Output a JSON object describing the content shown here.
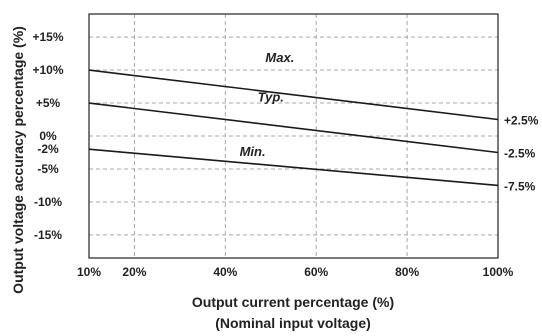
{
  "chart_data": {
    "type": "line",
    "xlabel": "Output current percentage (%)",
    "xlabel_sub": "(Nominal input voltage)",
    "ylabel": "Output voltage accuracy percentage (%)",
    "xlim": [
      10,
      100
    ],
    "ylim": [
      -18.5,
      18.5
    ],
    "x_ticks": [
      {
        "value": 10,
        "label": "10%"
      },
      {
        "value": 20,
        "label": "20%"
      },
      {
        "value": 40,
        "label": "40%"
      },
      {
        "value": 60,
        "label": "60%"
      },
      {
        "value": 80,
        "label": "80%"
      },
      {
        "value": 100,
        "label": "100%"
      }
    ],
    "x_grid": [
      20,
      40,
      60,
      80
    ],
    "y_ticks": [
      {
        "value": 15,
        "label": "+15%"
      },
      {
        "value": 10,
        "label": "+10%"
      },
      {
        "value": 5,
        "label": "+5%"
      },
      {
        "value": 0,
        "label": "0%"
      },
      {
        "value": -2,
        "label": "-2%"
      },
      {
        "value": -5,
        "label": "-5%"
      },
      {
        "value": -10,
        "label": "-10%"
      },
      {
        "value": -15,
        "label": "-15%"
      }
    ],
    "y_grid": [
      15,
      10,
      5,
      0,
      -5,
      -10,
      -15
    ],
    "grid": true,
    "series": [
      {
        "name": "Max.",
        "x": [
          10,
          100
        ],
        "y": [
          10,
          2.5
        ],
        "end_label": "+2.5%",
        "label_at": [
          52,
          11.2
        ]
      },
      {
        "name": "Typ.",
        "x": [
          10,
          100
        ],
        "y": [
          5,
          -2.5
        ],
        "end_label": "-2.5%",
        "label_at": [
          50,
          5.2
        ]
      },
      {
        "name": "Min.",
        "x": [
          10,
          100
        ],
        "y": [
          -2,
          -7.5
        ],
        "end_label": "-7.5%",
        "label_at": [
          46,
          -3.0
        ]
      }
    ]
  }
}
